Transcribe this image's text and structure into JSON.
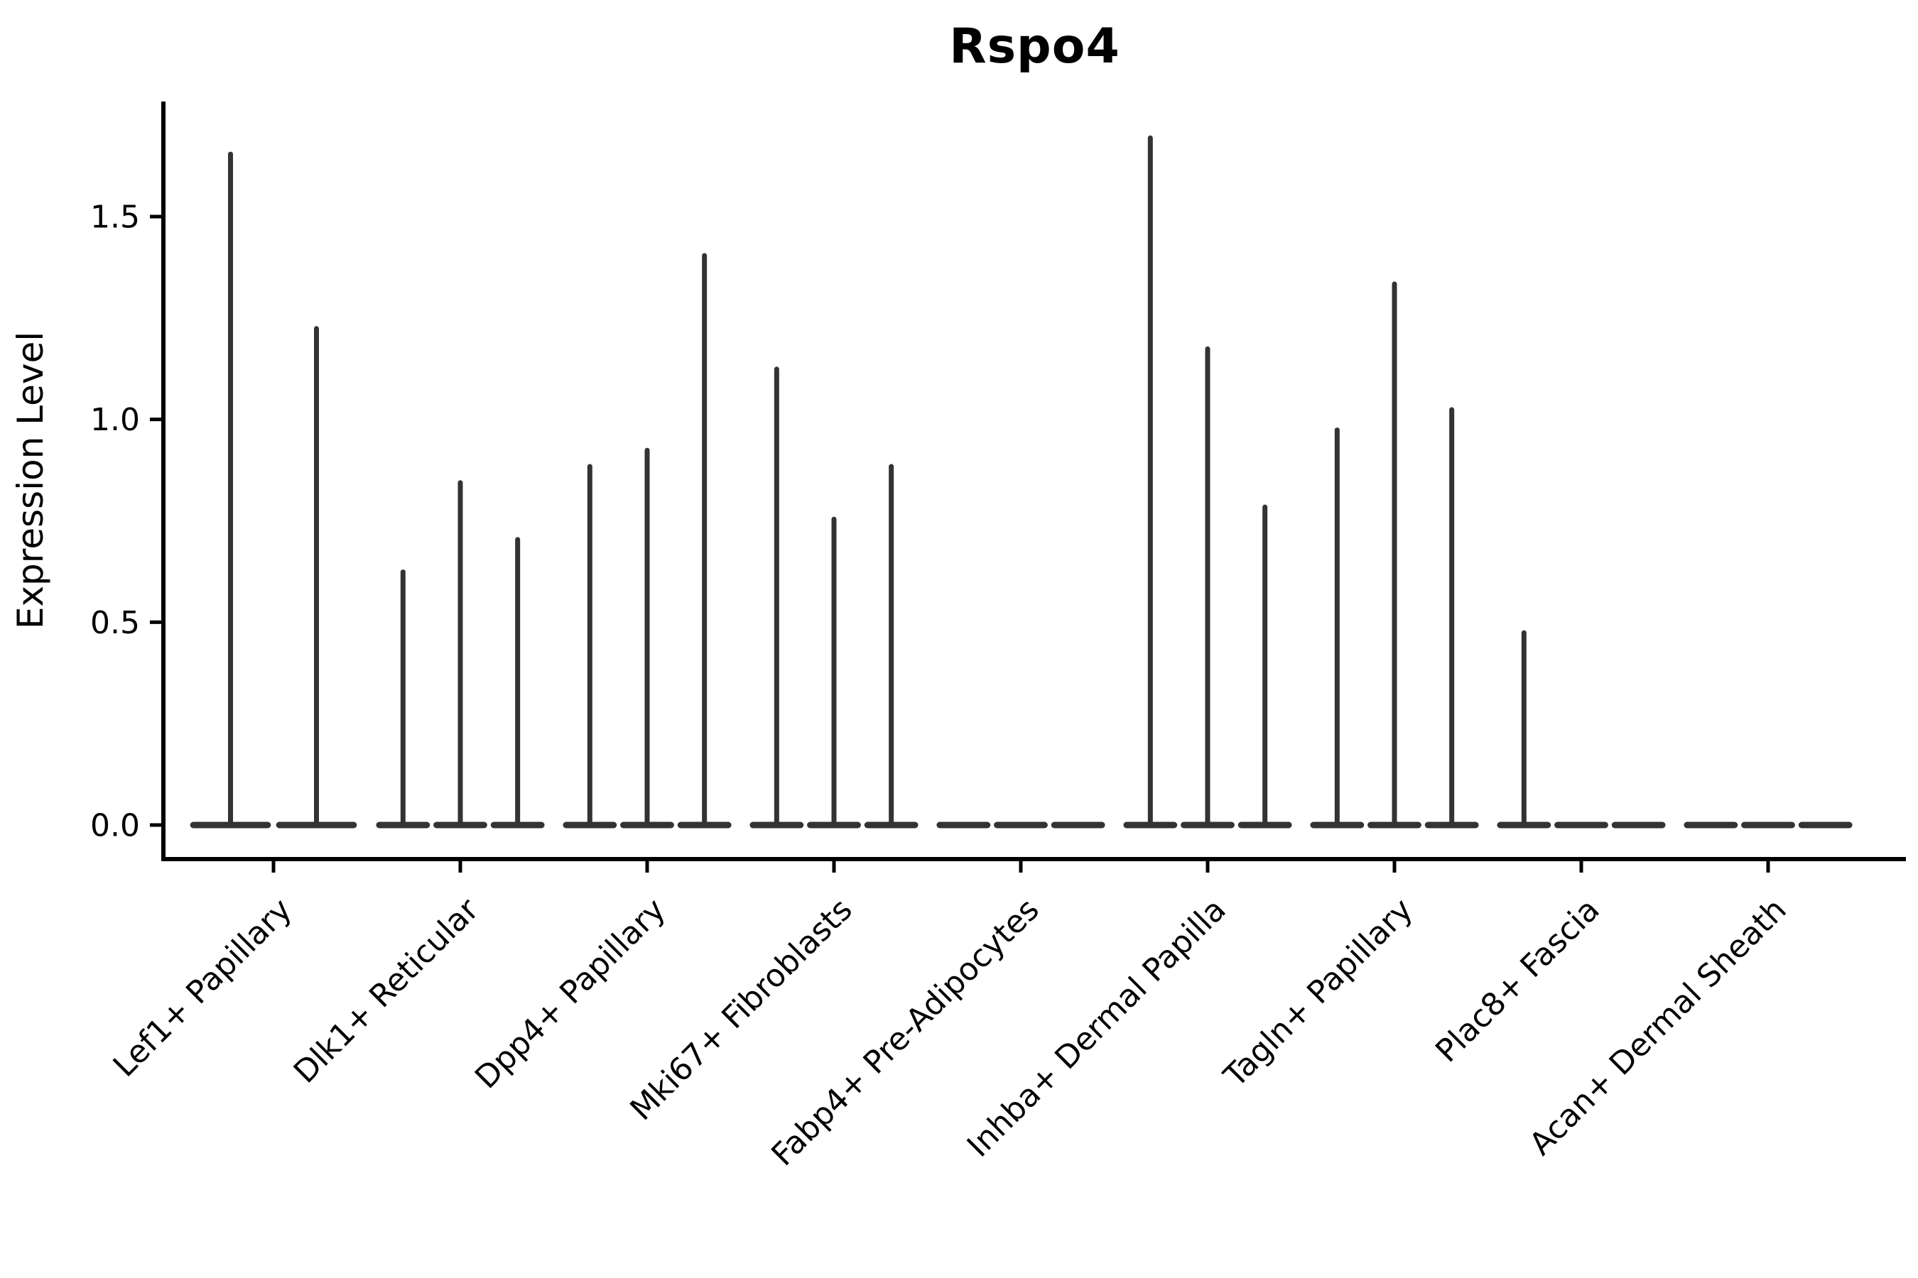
{
  "chart_data": {
    "type": "violin",
    "title": "Rspo4",
    "xlabel": "",
    "ylabel": "Expression Level",
    "ylim": [
      -0.08,
      1.78
    ],
    "yticks": [
      0.0,
      0.5,
      1.0,
      1.5
    ],
    "ytick_labels": [
      "0.0",
      "0.5",
      "1.0",
      "1.5"
    ],
    "grid": false,
    "legend": false,
    "x_label_rotation": 45,
    "categories": [
      "Lef1+ Papillary",
      "Dlk1+ Reticular",
      "Dpp4+ Papillary",
      "Mki67+ Fibroblasts",
      "Fabp4+ Pre-Adipocytes",
      "Inhba+ Dermal Papilla",
      "Tagln+ Papillary",
      "Plac8+ Fascia",
      "Acan+ Dermal Sheath"
    ],
    "series_note": "each category holds narrow split violins; peak = max expression level of each violin, 0 = flat violin at baseline",
    "groups": [
      {
        "label": "Lef1+ Papillary",
        "peaks": [
          1.66,
          1.23
        ]
      },
      {
        "label": "Dlk1+ Reticular",
        "peaks": [
          0.63,
          0.85,
          0.71
        ]
      },
      {
        "label": "Dpp4+ Papillary",
        "peaks": [
          0.89,
          0.93,
          1.41
        ]
      },
      {
        "label": "Mki67+ Fibroblasts",
        "peaks": [
          1.13,
          0.76,
          0.89
        ]
      },
      {
        "label": "Fabp4+ Pre-Adipocytes",
        "peaks": [
          0,
          0,
          0
        ]
      },
      {
        "label": "Inhba+ Dermal Papilla",
        "peaks": [
          1.7,
          1.18,
          0.79
        ]
      },
      {
        "label": "Tagln+ Papillary",
        "peaks": [
          0.98,
          1.34,
          1.03
        ]
      },
      {
        "label": "Plac8+ Fascia",
        "peaks": [
          0.48,
          0,
          0
        ]
      },
      {
        "label": "Acan+ Dermal Sheath",
        "peaks": [
          0,
          0,
          0
        ]
      }
    ],
    "colors": {
      "violin_fill": "#333333",
      "axis": "#000000",
      "text": "#000000",
      "background": "#ffffff"
    }
  }
}
